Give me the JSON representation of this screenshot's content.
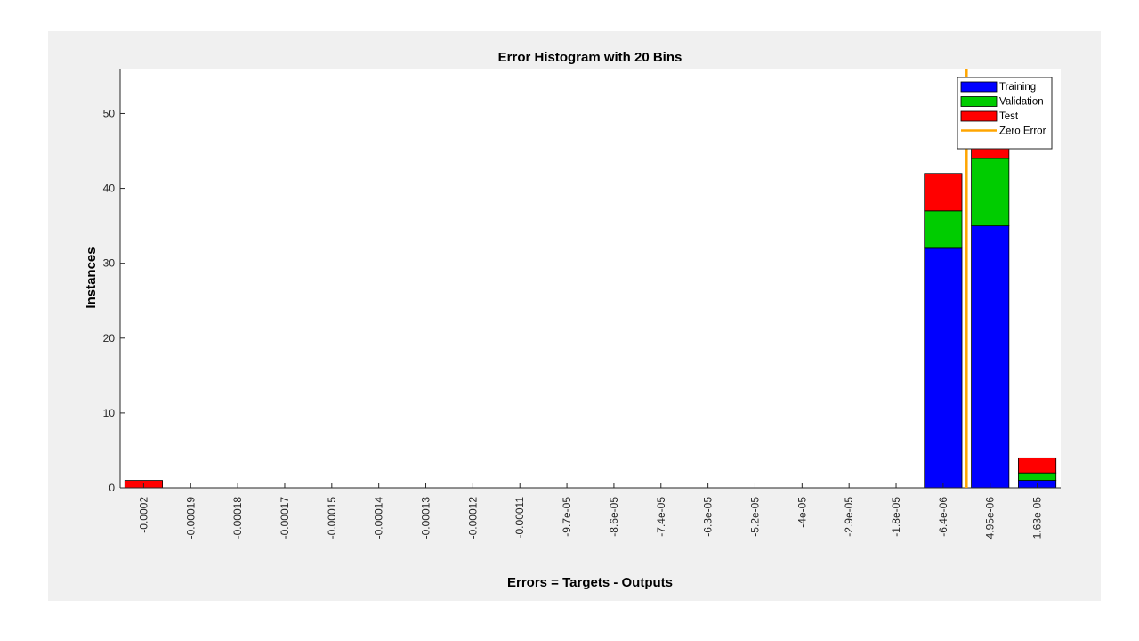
{
  "chart_data": {
    "type": "bar",
    "stacked": true,
    "title": "Error Histogram with 20 Bins",
    "xlabel": "Errors = Targets - Outputs",
    "ylabel": "Instances",
    "ylim": [
      0,
      56
    ],
    "yticks": [
      0,
      10,
      20,
      30,
      40,
      50
    ],
    "categories": [
      "-0.0002",
      "-0.00019",
      "-0.00018",
      "-0.00017",
      "-0.00015",
      "-0.00014",
      "-0.00013",
      "-0.00012",
      "-0.00011",
      "-9.7e-05",
      "-8.6e-05",
      "-7.4e-05",
      "-6.3e-05",
      "-5.2e-05",
      "-4e-05",
      "-2.9e-05",
      "-1.8e-05",
      "-6.4e-06",
      "4.95e-06",
      "1.63e-05"
    ],
    "series": [
      {
        "name": "Training",
        "color": "#0000ff",
        "values": [
          0,
          0,
          0,
          0,
          0,
          0,
          0,
          0,
          0,
          0,
          0,
          0,
          0,
          0,
          0,
          0,
          0,
          32,
          35,
          1
        ]
      },
      {
        "name": "Validation",
        "color": "#00cc00",
        "values": [
          0,
          0,
          0,
          0,
          0,
          0,
          0,
          0,
          0,
          0,
          0,
          0,
          0,
          0,
          0,
          0,
          0,
          5,
          9,
          1
        ]
      },
      {
        "name": "Test",
        "color": "#ff0000",
        "values": [
          1,
          0,
          0,
          0,
          0,
          0,
          0,
          0,
          0,
          0,
          0,
          0,
          0,
          0,
          0,
          0,
          0,
          5,
          9,
          2
        ]
      }
    ],
    "zero_error": {
      "name": "Zero Error",
      "color": "#ffa500",
      "position_between_bins": [
        17,
        18
      ]
    },
    "legend": {
      "placement": "top-right",
      "entries": [
        "Training",
        "Validation",
        "Test",
        "Zero Error"
      ]
    },
    "grid": false
  }
}
